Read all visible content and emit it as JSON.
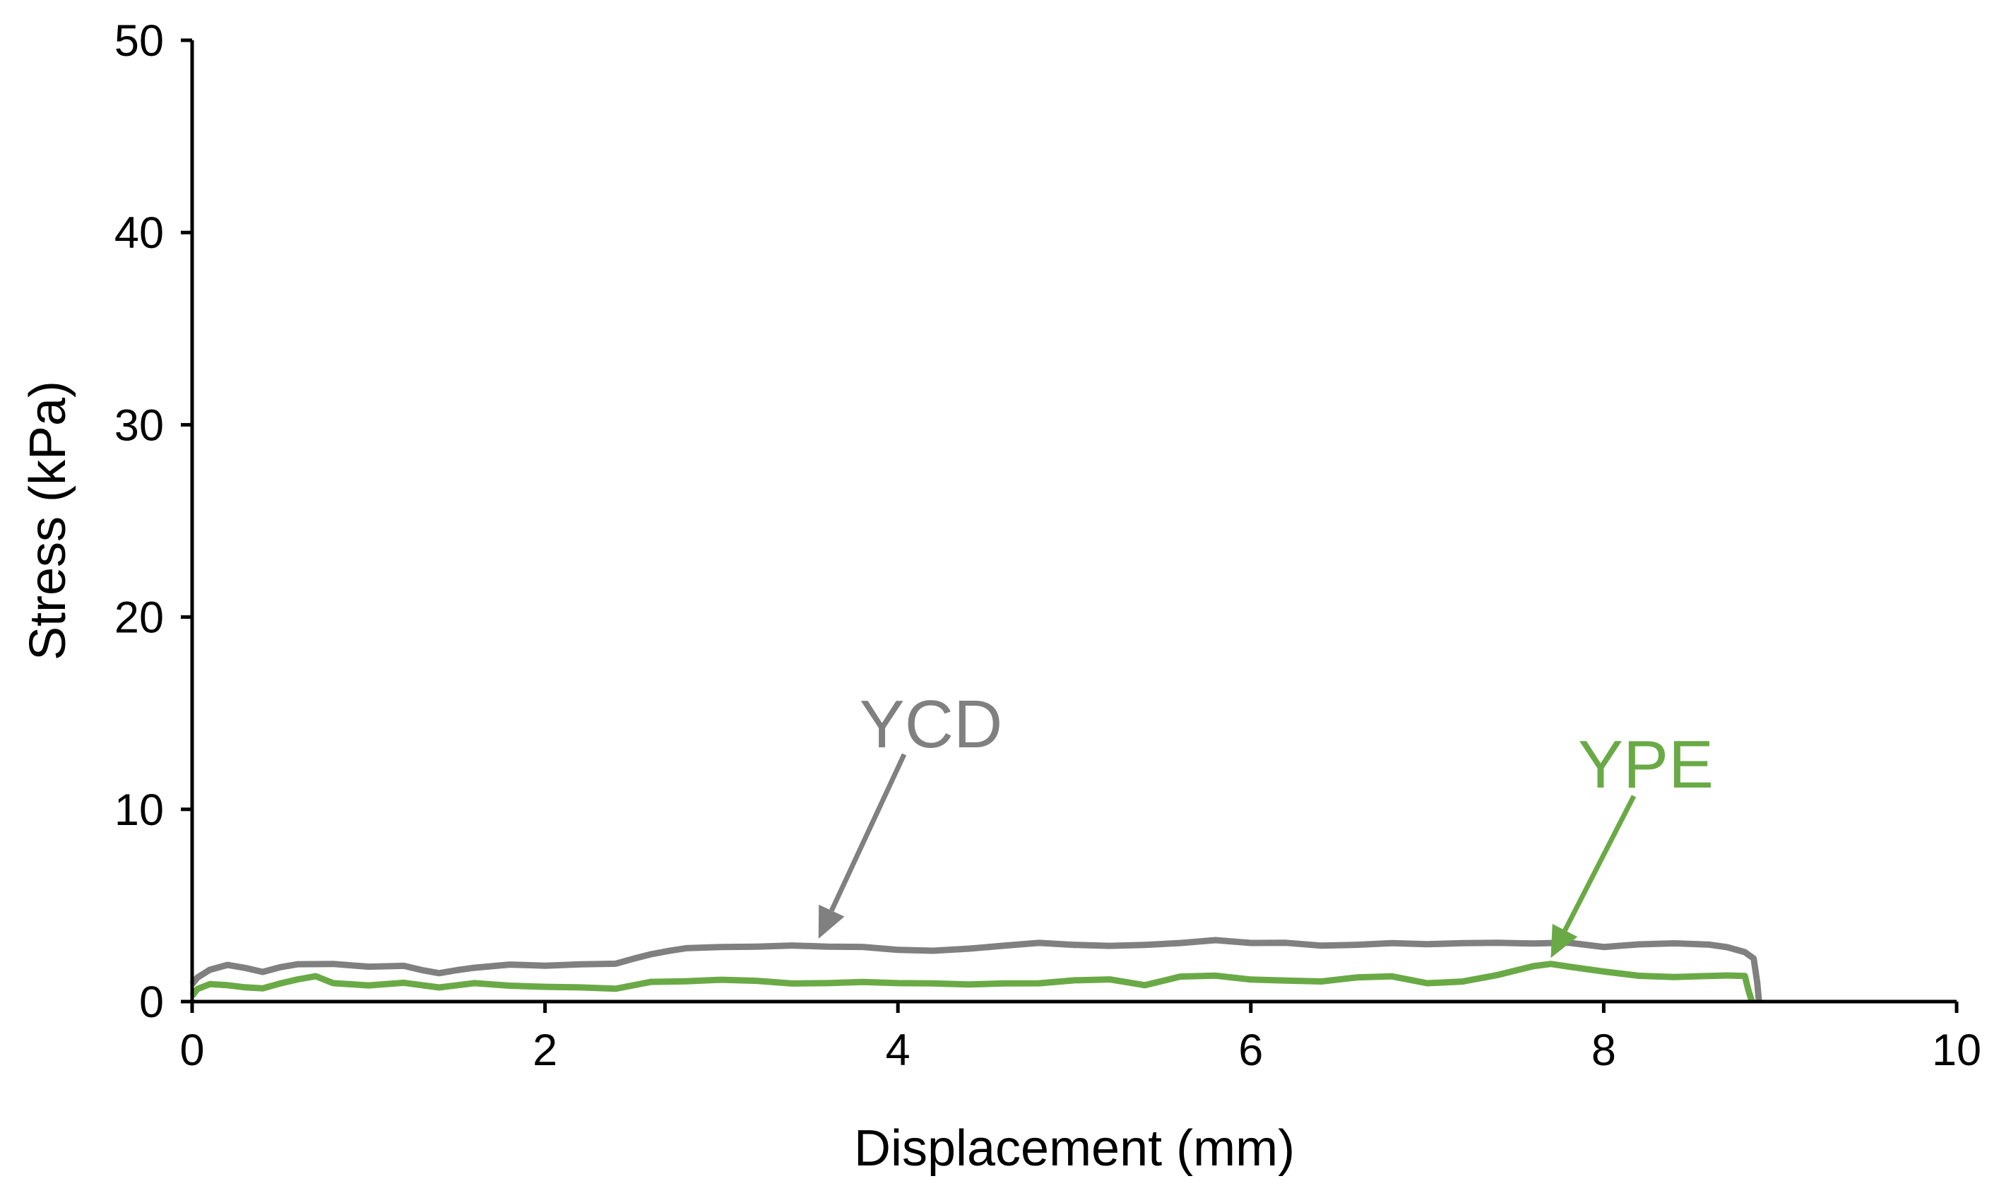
{
  "chart_data": {
    "type": "line",
    "title": "",
    "xlabel": "Displacement (mm)",
    "ylabel": "Stress (kPa)",
    "xlim": [
      0,
      10
    ],
    "ylim": [
      0,
      50
    ],
    "xticks": [
      0,
      2,
      4,
      6,
      8,
      10
    ],
    "xtick_labels": [
      "0",
      "2",
      "4",
      "6",
      "8",
      "10"
    ],
    "yticks": [
      0,
      10,
      20,
      30,
      40,
      50
    ],
    "ytick_labels": [
      "0",
      "10",
      "20",
      "30",
      "40",
      "50"
    ],
    "grid": false,
    "legend": "none",
    "series": [
      {
        "name": "YCD",
        "color": "#808080",
        "x": [
          0,
          0.03,
          0.1,
          0.2,
          0.3,
          0.4,
          0.5,
          0.6,
          0.8,
          1.0,
          1.2,
          1.3,
          1.4,
          1.5,
          1.6,
          1.8,
          2.0,
          2.2,
          2.4,
          2.5,
          2.6,
          2.7,
          2.8,
          3.0,
          3.2,
          3.4,
          3.6,
          3.8,
          4.0,
          4.2,
          4.4,
          4.6,
          4.8,
          5.0,
          5.2,
          5.4,
          5.6,
          5.8,
          6.0,
          6.2,
          6.4,
          6.6,
          6.8,
          7.0,
          7.2,
          7.4,
          7.6,
          7.8,
          8.0,
          8.2,
          8.4,
          8.6,
          8.7,
          8.8,
          8.85,
          8.87,
          8.88
        ],
        "y": [
          0.9,
          1.2,
          1.6,
          1.9,
          1.8,
          1.6,
          1.8,
          1.9,
          1.9,
          1.8,
          1.9,
          1.7,
          1.5,
          1.6,
          1.7,
          1.9,
          1.9,
          2.0,
          2.0,
          2.2,
          2.4,
          2.6,
          2.8,
          2.9,
          2.9,
          2.9,
          2.8,
          2.8,
          2.7,
          2.7,
          2.8,
          2.9,
          3.0,
          2.9,
          2.9,
          3.0,
          3.1,
          3.2,
          3.0,
          3.0,
          2.9,
          3.0,
          3.1,
          3.0,
          3.0,
          3.0,
          3.0,
          3.1,
          2.9,
          3.0,
          3.0,
          2.9,
          2.8,
          2.6,
          2.3,
          1.0,
          0
        ],
        "annotation": "YCD"
      },
      {
        "name": "YPE",
        "color": "#6aaa46",
        "x": [
          0,
          0.03,
          0.1,
          0.2,
          0.3,
          0.4,
          0.5,
          0.6,
          0.7,
          0.8,
          1.0,
          1.2,
          1.4,
          1.6,
          1.8,
          2.0,
          2.2,
          2.4,
          2.6,
          2.8,
          3.0,
          3.2,
          3.4,
          3.6,
          3.8,
          4.0,
          4.2,
          4.4,
          4.6,
          4.8,
          5.0,
          5.2,
          5.4,
          5.6,
          5.8,
          6.0,
          6.2,
          6.4,
          6.6,
          6.8,
          7.0,
          7.2,
          7.4,
          7.6,
          7.7,
          7.8,
          8.0,
          8.2,
          8.4,
          8.6,
          8.7,
          8.8,
          8.82,
          8.84
        ],
        "y": [
          0.3,
          0.6,
          0.9,
          0.9,
          0.8,
          0.7,
          0.9,
          1.1,
          1.3,
          1.0,
          0.9,
          1.0,
          0.7,
          0.9,
          0.8,
          0.8,
          0.8,
          0.7,
          1.0,
          1.0,
          1.1,
          1.1,
          1.0,
          1.0,
          1.0,
          0.9,
          0.9,
          0.9,
          1.0,
          1.0,
          1.1,
          1.1,
          0.8,
          1.3,
          1.4,
          1.2,
          1.1,
          1.0,
          1.2,
          1.3,
          1.0,
          1.1,
          1.4,
          1.8,
          1.9,
          1.8,
          1.6,
          1.4,
          1.3,
          1.3,
          1.3,
          1.3,
          0.6,
          0
        ],
        "annotation": "YPE"
      }
    ],
    "annotations": [
      {
        "text": "YCD",
        "color": "#808080",
        "arrow_to": [
          3.55,
          2.9
        ]
      },
      {
        "text": "YPE",
        "color": "#6aaa46",
        "arrow_to": [
          7.7,
          1.9
        ]
      }
    ]
  }
}
